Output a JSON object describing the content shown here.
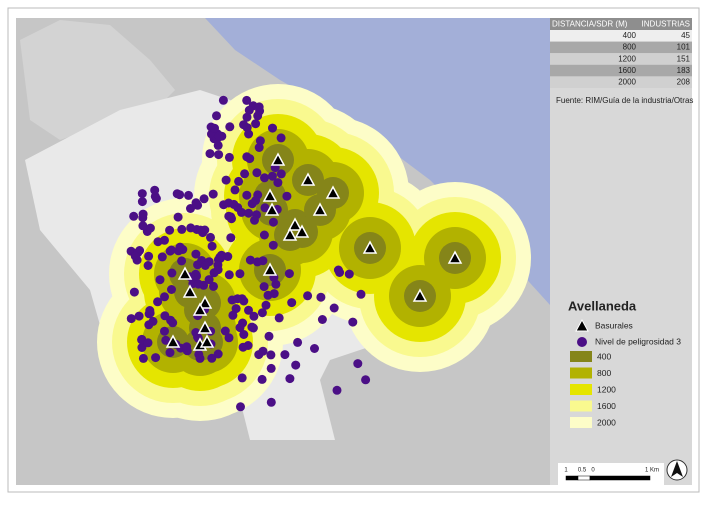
{
  "table": {
    "headers": [
      "DISTANCIA/SDR (M)",
      "INDUSTRIAS"
    ],
    "rows": [
      [
        400,
        45
      ],
      [
        800,
        101
      ],
      [
        1200,
        151
      ],
      [
        1600,
        183
      ],
      [
        2000,
        208
      ]
    ]
  },
  "source": "Fuente: RIM/Guía de la industria/Otras",
  "legend": {
    "title": "Avellaneda",
    "items": [
      "Basurales",
      "Nivel de peligrosidad 3"
    ],
    "buffers": [
      400,
      800,
      1200,
      1600,
      2000
    ]
  },
  "scale_bar": {
    "labels": [
      1,
      0.5,
      0,
      "1 Km"
    ]
  }
}
